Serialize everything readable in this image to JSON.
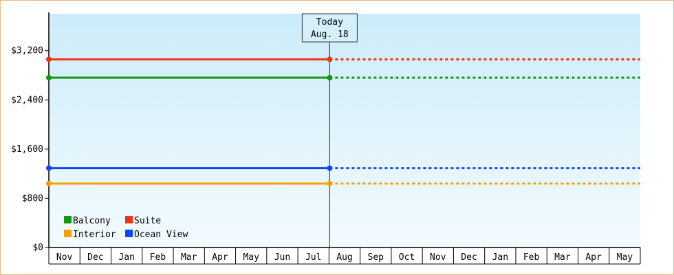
{
  "chart_data": {
    "type": "line",
    "categories": [
      "Nov",
      "Dec",
      "Jan",
      "Feb",
      "Mar",
      "Apr",
      "May",
      "Jun",
      "Jul",
      "Aug",
      "Sep",
      "Oct",
      "Nov",
      "Dec",
      "Jan",
      "Feb",
      "Mar",
      "Apr",
      "May"
    ],
    "y_ticks": [
      "$0",
      "$800",
      "$1,600",
      "$2,400",
      "$3,200"
    ],
    "y_tick_values": [
      0,
      800,
      1600,
      2400,
      3200
    ],
    "ylim": [
      0,
      3800
    ],
    "today_index": 9,
    "today_label": {
      "line1": "Today",
      "line2": "Aug. 18"
    },
    "series": [
      {
        "name": "Suite",
        "color": "#ee3311",
        "value": 3060
      },
      {
        "name": "Balcony",
        "color": "#119911",
        "value": 2760
      },
      {
        "name": "Ocean View",
        "color": "#1144ff",
        "value": 1290
      },
      {
        "name": "Interior",
        "color": "#f5a000",
        "value": 1040
      }
    ],
    "legend": [
      {
        "name": "Balcony",
        "color": "#119911"
      },
      {
        "name": "Suite",
        "color": "#ee3311"
      },
      {
        "name": "Interior",
        "color": "#f5a000"
      },
      {
        "name": "Ocean View",
        "color": "#1144ff"
      }
    ],
    "legend_placement": "bottom-left",
    "grid": false
  }
}
